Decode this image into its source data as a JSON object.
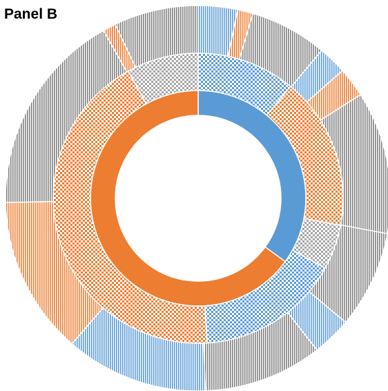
{
  "chart_data": {
    "type": "sunburst",
    "title": "Panel B",
    "rings": [
      {
        "pattern": "solid",
        "values": [
          35,
          65
        ],
        "colors": [
          "#5b9bd5",
          "#ed7d31"
        ]
      },
      {
        "pattern": "checker",
        "values": [
          11,
          17,
          5,
          16,
          43,
          8
        ],
        "colors": [
          "#5b9bd5",
          "#ed7d31",
          "#a5a5a5",
          "#5b9bd5",
          "#ed7d31",
          "#a5a5a5"
        ]
      },
      {
        "pattern": "stripes",
        "values": [
          3.3,
          1.3,
          6.5,
          2.4,
          2.5,
          12,
          8.2,
          3.3,
          10,
          12,
          13.3,
          17.2,
          1.1,
          7.1
        ],
        "colors": [
          "#5b9bd5",
          "#ed7d31",
          "#7f7f7f",
          "#5b9bd5",
          "#ed7d31",
          "#7f7f7f",
          "#7f7f7f",
          "#5b9bd5",
          "#7f7f7f",
          "#5b9bd5",
          "#ed7d31",
          "#7f7f7f",
          "#ed7d31",
          "#7f7f7f"
        ]
      }
    ]
  }
}
